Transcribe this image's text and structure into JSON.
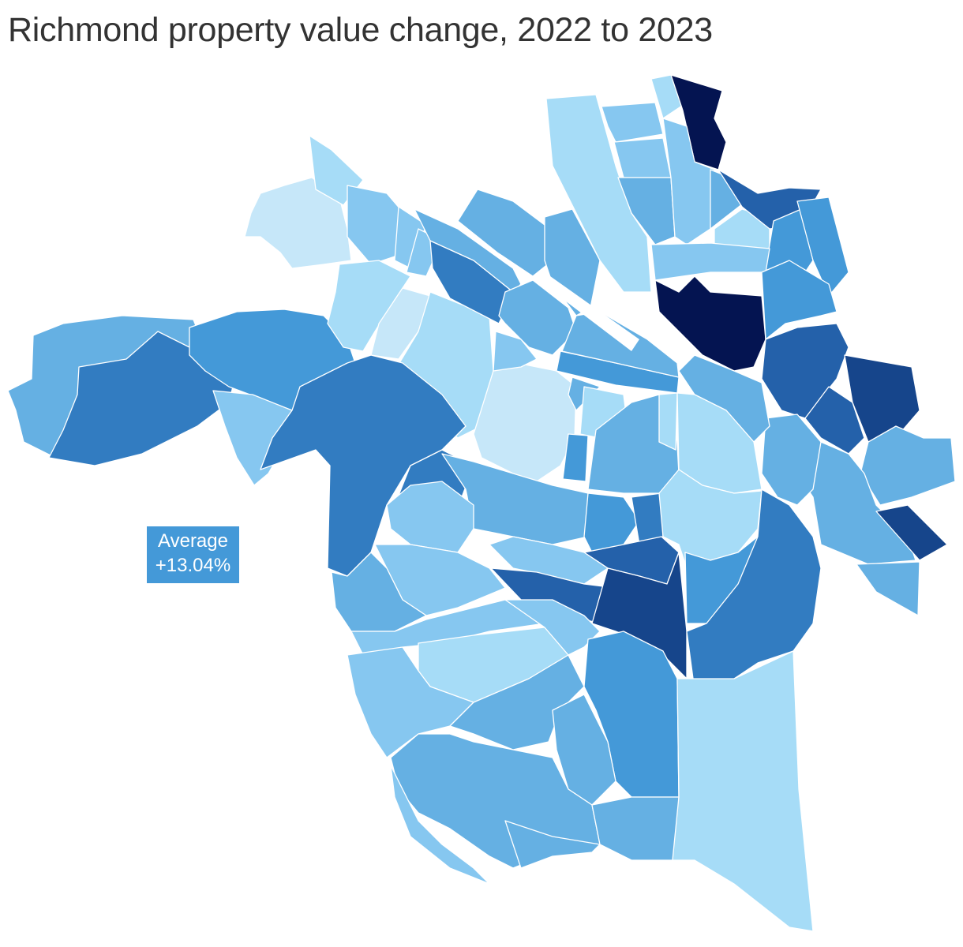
{
  "title": "Richmond property value change, 2022 to 2023",
  "annotation": {
    "label": "Average",
    "value": "+13.04%"
  },
  "chart_data": {
    "type": "choropleth",
    "title": "Richmond property value change, 2022 to 2023",
    "average_label": "Average",
    "average_value": "+13.04%",
    "legend": "none",
    "color_scale": [
      "#c6e7f9",
      "#a6dcf7",
      "#86c7f0",
      "#65b0e3",
      "#4499d8",
      "#327cc1",
      "#2461aa",
      "#16458b",
      "#041451"
    ]
  }
}
